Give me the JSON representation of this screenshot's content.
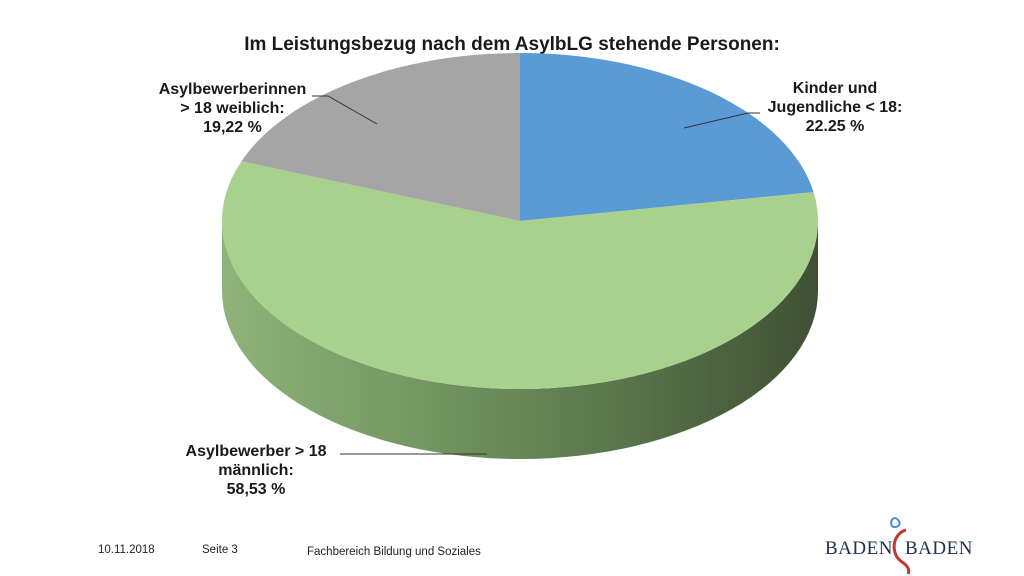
{
  "chart_data": {
    "type": "pie",
    "title": "Im Leistungsbezug nach dem AsylbLG stehende Personen:",
    "series": [
      {
        "values": [
          22.25,
          58.53,
          19.22
        ]
      }
    ],
    "slices": [
      {
        "label": [
          "Kinder und",
          "Jugendliche < 18:",
          "22.25 %"
        ],
        "value": 22.25,
        "color": "#5b9bd5"
      },
      {
        "label": [
          "Asylbewerber > 18",
          "männlich:",
          "58,53 %"
        ],
        "value": 58.53,
        "color": "#a9d18e"
      },
      {
        "label": [
          "Asylbewerberinnen",
          "> 18  weiblich:",
          "19,22 %"
        ],
        "value": 19.22,
        "color": "#a5a5a5"
      }
    ]
  },
  "footer": {
    "date": "10.11.2018",
    "page": "Seite 3",
    "department": "Fachbereich Bildung und Soziales"
  },
  "logo": {
    "left": "BADEN",
    "right": "BADEN"
  }
}
